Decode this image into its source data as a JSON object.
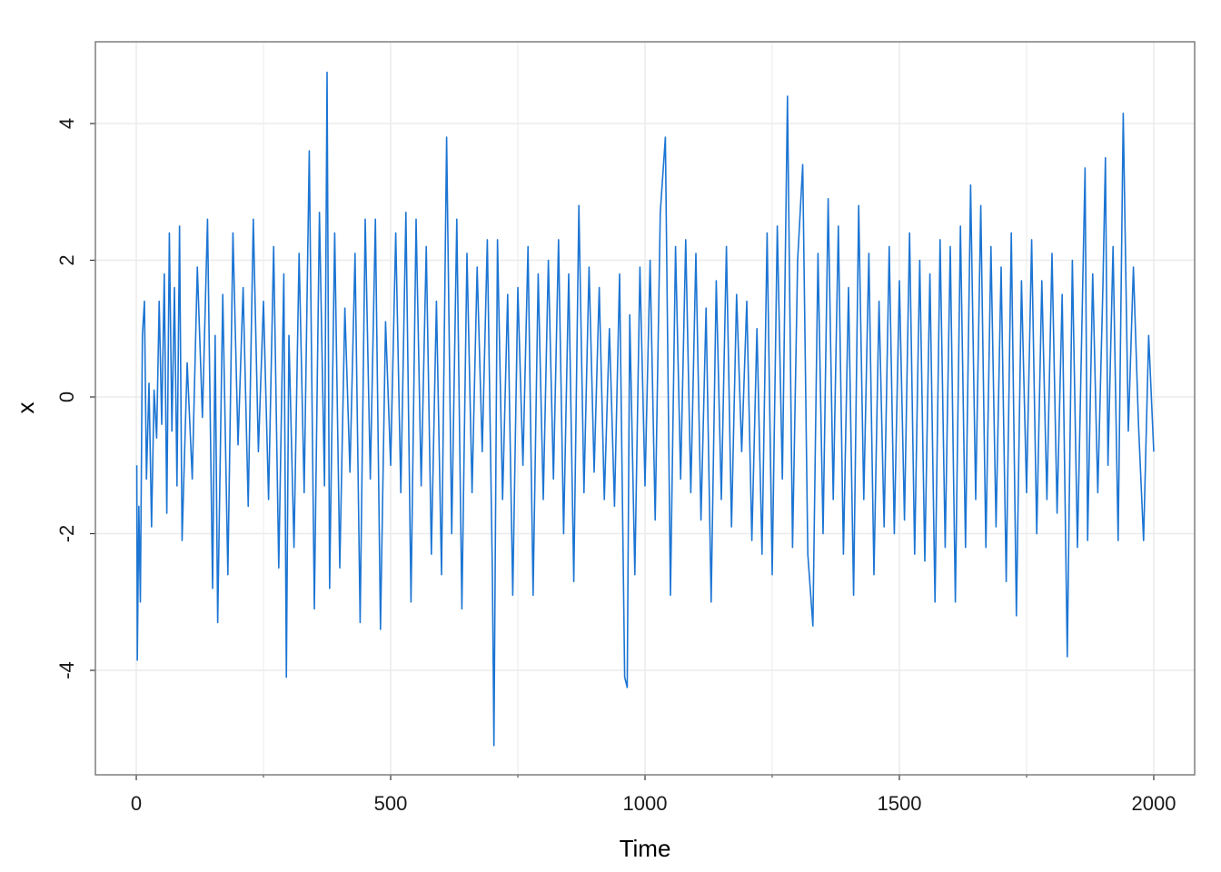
{
  "chart_data": {
    "type": "line",
    "x_label": "Time",
    "y_label": "x",
    "x": [
      1,
      2,
      5,
      8,
      12,
      16,
      20,
      25,
      30,
      35,
      40,
      45,
      50,
      55,
      60,
      65,
      70,
      75,
      80,
      85,
      90,
      100,
      110,
      120,
      130,
      140,
      150,
      155,
      160,
      170,
      180,
      190,
      200,
      210,
      220,
      230,
      240,
      250,
      260,
      270,
      280,
      290,
      295,
      300,
      310,
      320,
      330,
      340,
      350,
      360,
      370,
      375,
      380,
      390,
      400,
      410,
      420,
      430,
      440,
      450,
      460,
      470,
      480,
      490,
      500,
      510,
      520,
      530,
      540,
      550,
      560,
      570,
      580,
      590,
      600,
      610,
      620,
      630,
      640,
      650,
      660,
      670,
      680,
      690,
      700,
      703,
      710,
      720,
      730,
      740,
      750,
      760,
      770,
      780,
      790,
      800,
      810,
      820,
      830,
      840,
      850,
      860,
      870,
      880,
      890,
      900,
      910,
      920,
      930,
      940,
      950,
      960,
      965,
      970,
      980,
      990,
      1000,
      1010,
      1020,
      1030,
      1040,
      1050,
      1060,
      1070,
      1080,
      1090,
      1100,
      1110,
      1120,
      1130,
      1140,
      1150,
      1160,
      1170,
      1180,
      1190,
      1200,
      1210,
      1220,
      1230,
      1240,
      1250,
      1260,
      1270,
      1280,
      1290,
      1300,
      1310,
      1320,
      1330,
      1340,
      1350,
      1360,
      1370,
      1380,
      1390,
      1400,
      1410,
      1420,
      1430,
      1440,
      1450,
      1460,
      1470,
      1480,
      1490,
      1500,
      1510,
      1520,
      1530,
      1540,
      1550,
      1560,
      1570,
      1580,
      1590,
      1600,
      1610,
      1620,
      1630,
      1640,
      1650,
      1660,
      1670,
      1680,
      1690,
      1700,
      1710,
      1720,
      1730,
      1740,
      1750,
      1760,
      1770,
      1780,
      1790,
      1800,
      1810,
      1820,
      1830,
      1840,
      1850,
      1860,
      1865,
      1870,
      1880,
      1890,
      1900,
      1905,
      1910,
      1920,
      1930,
      1940,
      1950,
      1960,
      1970,
      1980,
      1990,
      2000
    ],
    "series": [
      {
        "color": "#1c75d3",
        "values": [
          -1.0,
          -3.85,
          -1.6,
          -3.0,
          0.9,
          1.4,
          -1.2,
          0.2,
          -1.9,
          0.1,
          -0.6,
          1.4,
          -0.4,
          1.8,
          -1.7,
          2.4,
          -0.5,
          1.6,
          -1.3,
          2.5,
          -2.1,
          0.5,
          -1.2,
          1.9,
          -0.3,
          2.6,
          -2.8,
          0.9,
          -3.3,
          1.5,
          -2.6,
          2.4,
          -0.7,
          1.6,
          -1.6,
          2.6,
          -0.8,
          1.4,
          -1.5,
          2.2,
          -2.5,
          1.8,
          -4.1,
          0.9,
          -2.2,
          2.1,
          -1.4,
          3.6,
          -3.1,
          2.7,
          -1.3,
          4.75,
          -2.8,
          2.4,
          -2.5,
          1.3,
          -1.1,
          2.1,
          -3.3,
          2.6,
          -1.2,
          2.6,
          -3.4,
          1.1,
          -1.0,
          2.4,
          -1.4,
          2.7,
          -3.0,
          2.6,
          -1.3,
          2.2,
          -2.3,
          1.4,
          -2.6,
          3.8,
          -2.0,
          2.6,
          -3.1,
          2.1,
          -1.4,
          1.9,
          -0.8,
          2.3,
          -2.6,
          -5.1,
          2.3,
          -1.5,
          1.5,
          -2.9,
          1.6,
          -1.0,
          2.2,
          -2.9,
          1.8,
          -1.5,
          2.0,
          -1.2,
          2.3,
          -2.0,
          1.8,
          -2.7,
          2.8,
          -1.4,
          1.9,
          -1.1,
          1.6,
          -1.5,
          1.0,
          -1.6,
          1.8,
          -4.1,
          -4.25,
          1.2,
          -2.6,
          1.9,
          -1.3,
          2.0,
          -1.8,
          2.7,
          3.8,
          -2.9,
          2.2,
          -1.2,
          2.3,
          -1.4,
          2.1,
          -1.8,
          1.3,
          -3.0,
          1.7,
          -1.5,
          2.2,
          -1.9,
          1.5,
          -0.8,
          1.4,
          -2.1,
          1.0,
          -2.3,
          2.4,
          -2.6,
          2.5,
          -1.2,
          4.4,
          -2.2,
          2.0,
          3.4,
          -2.3,
          -3.35,
          2.1,
          -2.0,
          2.9,
          -1.5,
          2.5,
          -2.3,
          1.6,
          -2.9,
          2.8,
          -1.5,
          2.1,
          -2.6,
          1.4,
          -1.9,
          2.2,
          -2.0,
          1.7,
          -1.8,
          2.4,
          -2.3,
          2.0,
          -2.4,
          1.8,
          -3.0,
          2.3,
          -2.2,
          2.2,
          -3.0,
          2.5,
          -2.2,
          3.1,
          -1.5,
          2.8,
          -2.2,
          2.2,
          -1.9,
          1.9,
          -2.7,
          2.4,
          -3.2,
          1.7,
          -1.4,
          2.3,
          -2.0,
          1.7,
          -1.5,
          2.1,
          -1.7,
          1.5,
          -3.8,
          2.0,
          -2.2,
          1.5,
          3.35,
          -2.1,
          1.8,
          -1.4,
          1.6,
          3.5,
          -1.0,
          2.2,
          -2.1,
          4.15,
          -0.5,
          1.9,
          -0.4,
          -2.1,
          0.9,
          -0.8
        ]
      }
    ],
    "xlim": [
      -80.4,
      2080.4
    ],
    "ylim": [
      -5.528,
      5.196
    ],
    "xticks": [
      0,
      500,
      1000,
      1500,
      2000
    ],
    "x_minor_grid": [
      250,
      750,
      1250,
      1750
    ],
    "yticks": [
      -4,
      -2,
      0,
      2,
      4
    ],
    "grid": true
  }
}
